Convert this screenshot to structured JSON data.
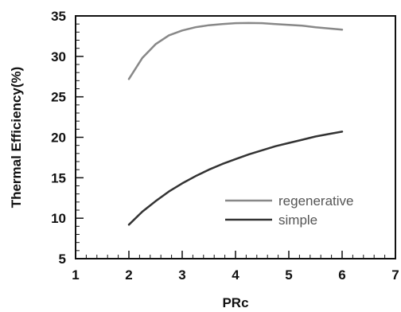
{
  "chart_data": {
    "type": "line",
    "xlabel": "PRc",
    "ylabel": "Thermal Efficiency(%)",
    "xlim": [
      1,
      7
    ],
    "ylim": [
      5,
      35
    ],
    "x_ticks": [
      "1",
      "2",
      "3",
      "4",
      "5",
      "6",
      "7"
    ],
    "y_ticks": [
      "5",
      "10",
      "15",
      "20",
      "25",
      "30",
      "35"
    ],
    "grid": false,
    "legend_position": "bottom-right",
    "series": [
      {
        "name": "regenerative",
        "color": "#888888",
        "x": [
          2.0,
          2.25,
          2.5,
          2.75,
          3.0,
          3.25,
          3.5,
          3.75,
          4.0,
          4.25,
          4.5,
          4.75,
          5.0,
          5.25,
          5.5,
          5.75,
          6.0
        ],
        "y": [
          27.2,
          29.8,
          31.5,
          32.6,
          33.2,
          33.6,
          33.85,
          34.0,
          34.1,
          34.12,
          34.1,
          34.0,
          33.9,
          33.8,
          33.6,
          33.45,
          33.3
        ]
      },
      {
        "name": "simple",
        "color": "#333333",
        "x": [
          2.0,
          2.25,
          2.5,
          2.75,
          3.0,
          3.25,
          3.5,
          3.75,
          4.0,
          4.25,
          4.5,
          4.75,
          5.0,
          5.25,
          5.5,
          5.75,
          6.0
        ],
        "y": [
          9.2,
          10.8,
          12.1,
          13.3,
          14.3,
          15.2,
          16.0,
          16.7,
          17.3,
          17.9,
          18.4,
          18.9,
          19.3,
          19.7,
          20.1,
          20.4,
          20.7
        ]
      }
    ]
  }
}
